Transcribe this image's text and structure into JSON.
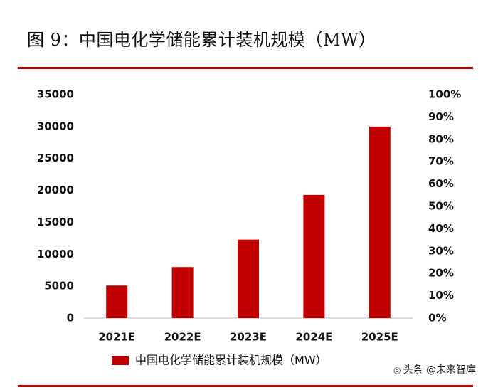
{
  "figure": {
    "title": "图 9：中国电化学储能累计装机规模（MW）"
  },
  "watermark": {
    "text": "头条 @未来智库",
    "icon": "wechat-icon"
  },
  "colors": {
    "bar": "#c00000",
    "rule": "#c00000"
  },
  "chart_data": {
    "type": "bar",
    "title": "",
    "categories": [
      "2021E",
      "2022E",
      "2023E",
      "2024E",
      "2025E"
    ],
    "series": [
      {
        "name": "中国电化学储能累计装机规模（MW）",
        "values": [
          5100,
          8000,
          12300,
          19300,
          30000
        ]
      }
    ],
    "ylim": [
      0,
      35000
    ],
    "yticks": [
      0,
      5000,
      10000,
      15000,
      20000,
      25000,
      30000,
      35000
    ],
    "y2lim": [
      0,
      1
    ],
    "y2ticks": [
      "0%",
      "10%",
      "20%",
      "30%",
      "40%",
      "50%",
      "60%",
      "70%",
      "80%",
      "90%",
      "100%"
    ],
    "xlabel": "",
    "ylabel": "",
    "grid": false,
    "legend": "bottom-center"
  }
}
